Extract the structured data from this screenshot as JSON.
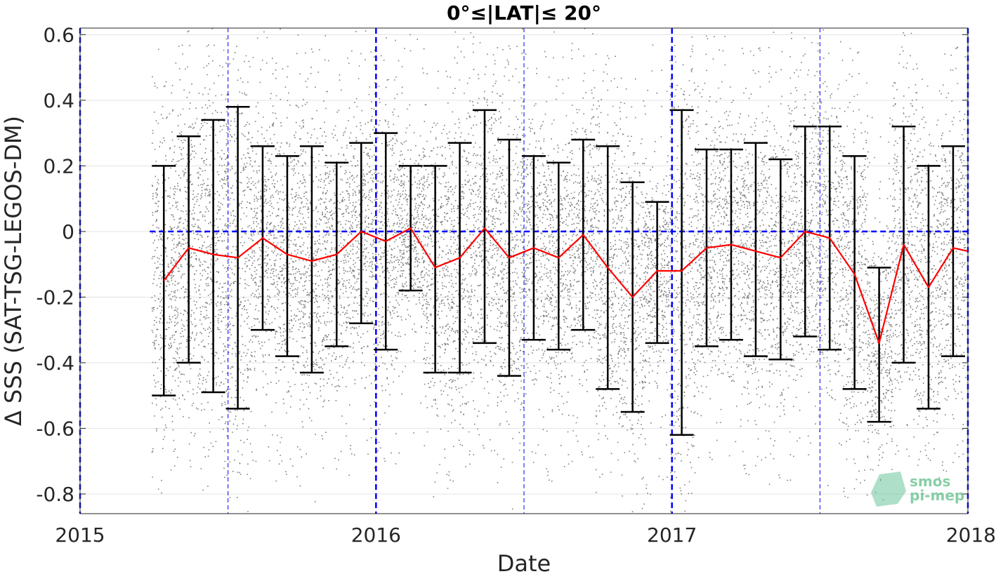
{
  "chart_data": {
    "type": "scatter",
    "title": "0°≤|LAT|≤ 20°",
    "xlabel": "Date",
    "ylabel": "Δ SSS (SAT-TSG-LEGOS-DM)",
    "xlim": [
      2015.0,
      2018.0
    ],
    "ylim": [
      -0.86,
      0.62
    ],
    "x_ticks": [
      {
        "value": 2015,
        "label": "2015"
      },
      {
        "value": 2016,
        "label": "2016"
      },
      {
        "value": 2017,
        "label": "2017"
      },
      {
        "value": 2018,
        "label": "2018"
      }
    ],
    "y_ticks": [
      {
        "value": 0.6,
        "label": "0.6"
      },
      {
        "value": 0.4,
        "label": "0.4"
      },
      {
        "value": 0.2,
        "label": "0.2"
      },
      {
        "value": 0,
        "label": "0"
      },
      {
        "value": -0.2,
        "label": "-0.2"
      },
      {
        "value": -0.4,
        "label": "-0.4"
      },
      {
        "value": -0.6,
        "label": "-0.6"
      },
      {
        "value": -0.8,
        "label": "-0.8"
      }
    ],
    "grid": true,
    "colors": {
      "scatter": "#7f7f7f",
      "mean_line": "#ff0000",
      "error_bars": "#000000",
      "reference_lines": "#0000ff"
    },
    "scatter_note": "dense grey cloud of individual differences, roughly -0.7 to 0.6 around each monthly bin from 2015.28 to 2018.0",
    "series": [
      {
        "kind": "mean_line",
        "x": [
          2015.283,
          2015.367,
          2015.45,
          2015.533,
          2015.617,
          2015.7,
          2015.783,
          2015.867,
          2015.95,
          2016.033,
          2016.117,
          2016.2,
          2016.283,
          2016.367,
          2016.45,
          2016.533,
          2016.617,
          2016.7,
          2016.783,
          2016.867,
          2016.95,
          2017.033,
          2017.117,
          2017.2,
          2017.283,
          2017.367,
          2017.45,
          2017.533,
          2017.617,
          2017.7,
          2017.783,
          2017.867,
          2017.95,
          2018.0
        ],
        "values": [
          -0.15,
          -0.05,
          -0.07,
          -0.08,
          -0.02,
          -0.07,
          -0.09,
          -0.07,
          0.0,
          -0.03,
          0.01,
          -0.11,
          -0.08,
          0.01,
          -0.08,
          -0.05,
          -0.08,
          -0.01,
          -0.11,
          -0.2,
          -0.12,
          -0.12,
          -0.05,
          -0.04,
          -0.06,
          -0.08,
          0.0,
          -0.02,
          -0.13,
          -0.34,
          -0.04,
          -0.17,
          -0.05,
          -0.06
        ]
      },
      {
        "kind": "error_bars",
        "x": [
          2015.283,
          2015.367,
          2015.45,
          2015.533,
          2015.617,
          2015.7,
          2015.783,
          2015.867,
          2015.95,
          2016.033,
          2016.117,
          2016.2,
          2016.283,
          2016.367,
          2016.45,
          2016.533,
          2016.617,
          2016.7,
          2016.783,
          2016.867,
          2016.95,
          2017.033,
          2017.117,
          2017.2,
          2017.283,
          2017.367,
          2017.45,
          2017.533,
          2017.617,
          2017.7,
          2017.783,
          2017.867,
          2017.95
        ],
        "upper": [
          0.2,
          0.29,
          0.34,
          0.38,
          0.26,
          0.23,
          0.26,
          0.21,
          0.27,
          0.3,
          0.2,
          0.2,
          0.27,
          0.37,
          0.28,
          0.23,
          0.21,
          0.28,
          0.26,
          0.15,
          0.09,
          0.37,
          0.25,
          0.25,
          0.27,
          0.22,
          0.32,
          0.32,
          0.23,
          -0.11,
          0.32,
          0.2,
          0.26
        ],
        "lower": [
          -0.5,
          -0.4,
          -0.49,
          -0.54,
          -0.3,
          -0.38,
          -0.43,
          -0.35,
          -0.28,
          -0.36,
          -0.18,
          -0.43,
          -0.43,
          -0.34,
          -0.44,
          -0.33,
          -0.36,
          -0.3,
          -0.48,
          -0.55,
          -0.34,
          -0.62,
          -0.35,
          -0.33,
          -0.38,
          -0.39,
          -0.32,
          -0.36,
          -0.48,
          -0.58,
          -0.4,
          -0.54,
          -0.38
        ]
      }
    ],
    "reference_lines": {
      "horizontal_y": 0,
      "vertical_thick_x": [
        2015.0,
        2016.0,
        2017.0,
        2018.0
      ],
      "vertical_thin_x": [
        2015.5,
        2016.5,
        2017.5
      ]
    }
  },
  "logo": {
    "line1": "smos",
    "line2": "pi-mep"
  }
}
